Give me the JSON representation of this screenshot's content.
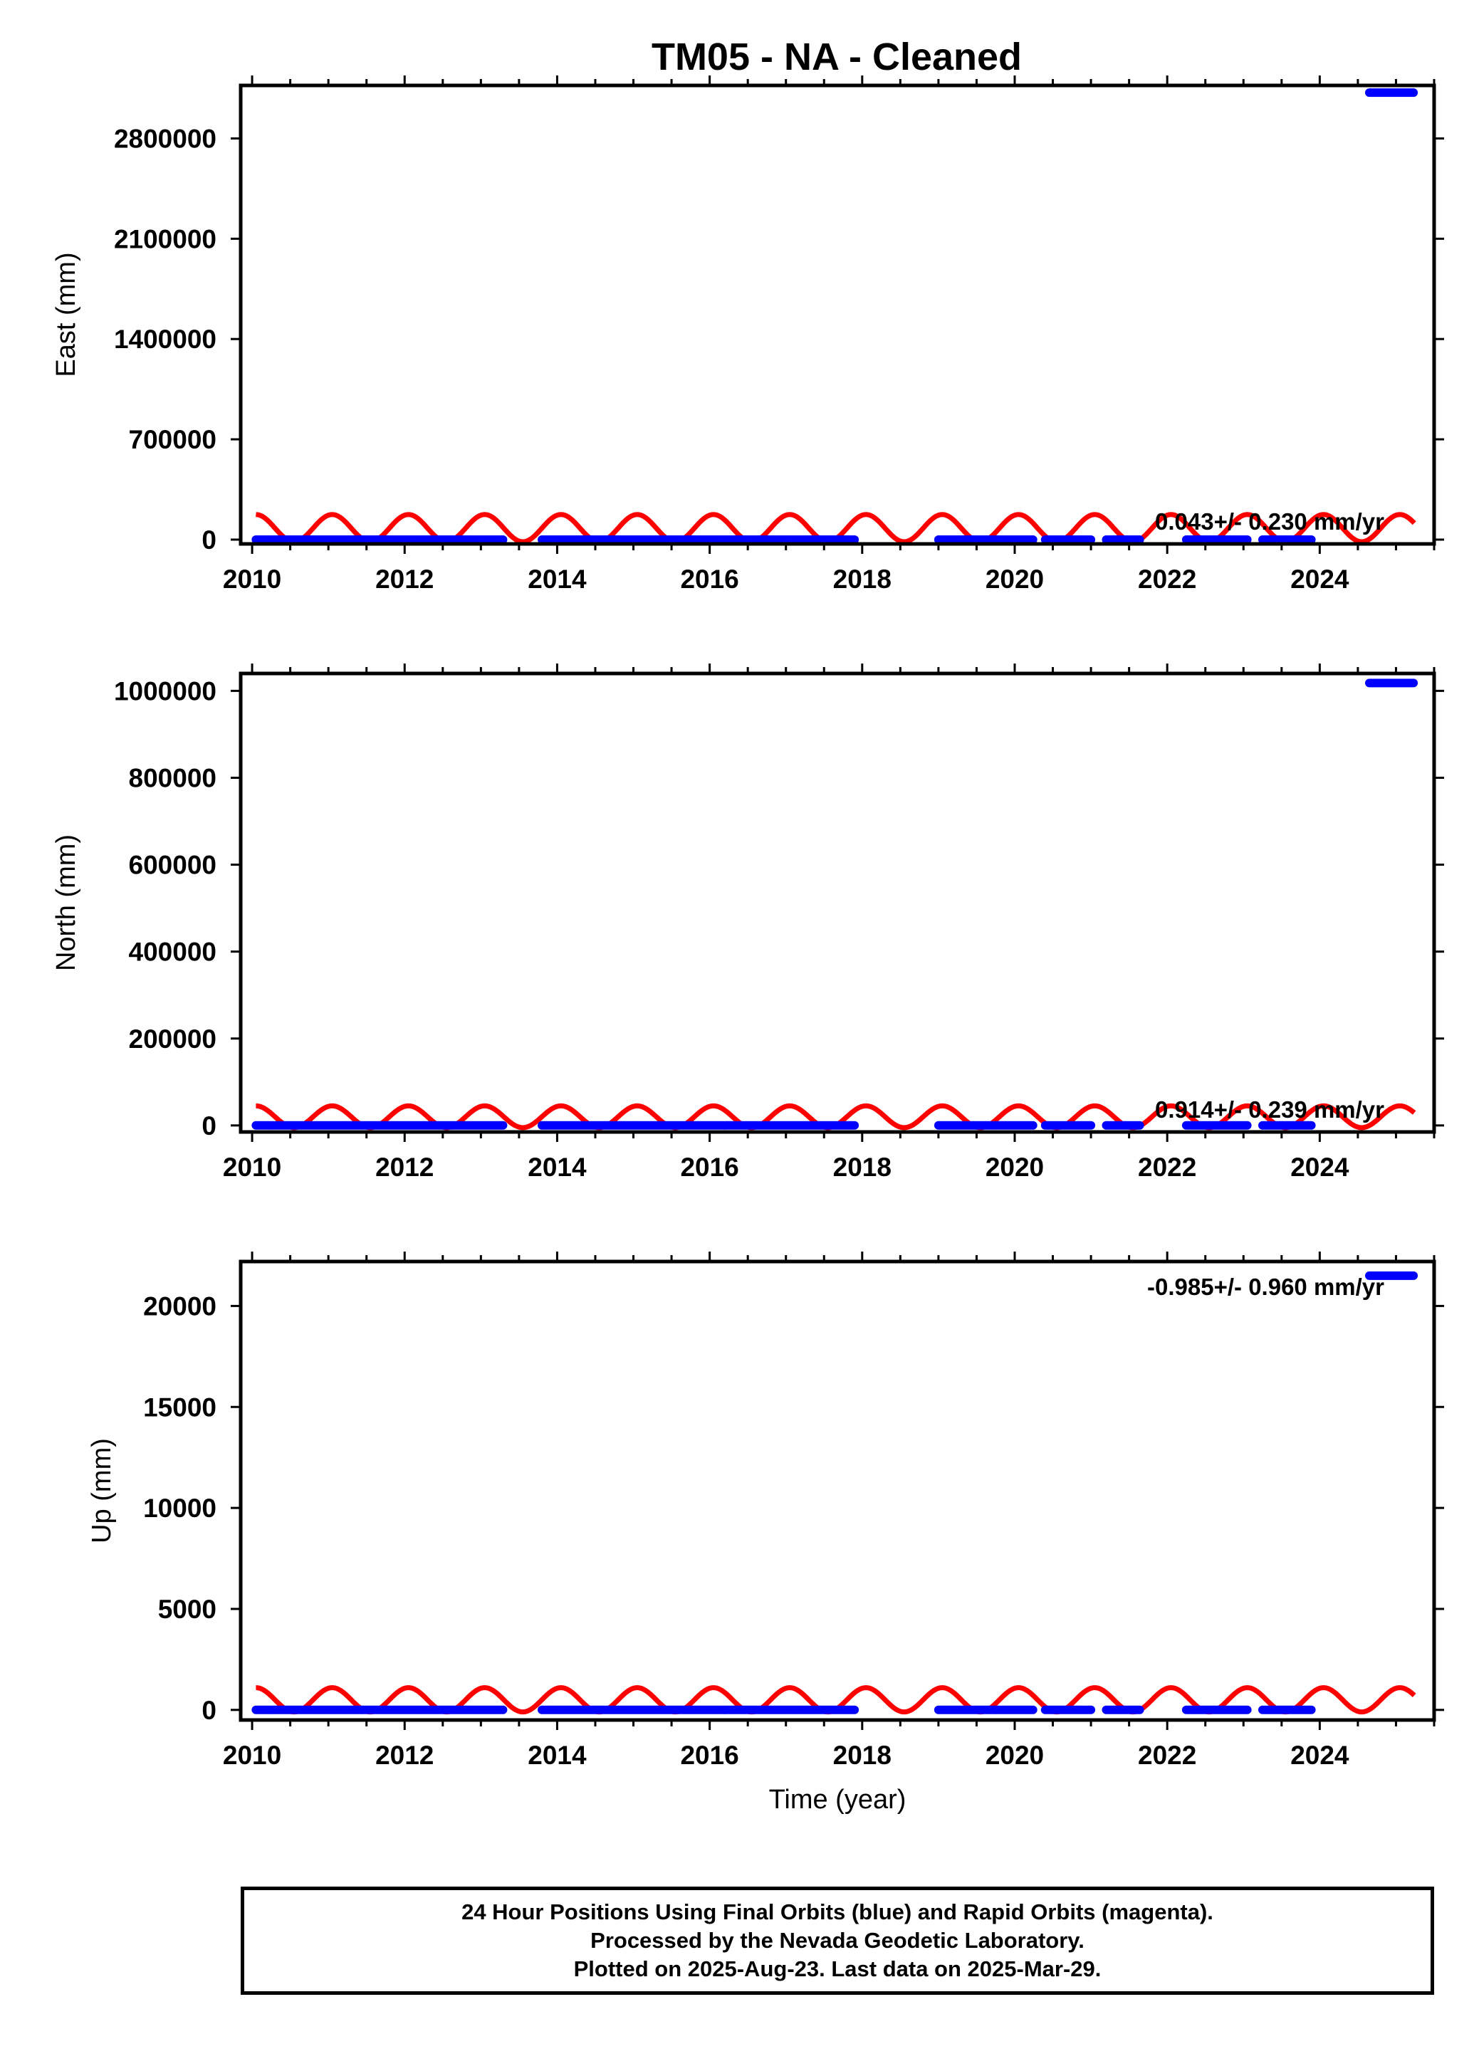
{
  "title": "TM05  - NA - Cleaned",
  "colors": {
    "final_orbits": "#0000ff",
    "model_fit": "#ff0000",
    "frame": "#000000"
  },
  "chart_data": [
    {
      "type": "scatter",
      "panel": "east",
      "ylabel": "East (mm)",
      "xlabel": "",
      "xlim": [
        2009.85,
        2025.5
      ],
      "ylim": [
        -30000,
        3170000
      ],
      "xticks": [
        2010,
        2012,
        2014,
        2016,
        2018,
        2020,
        2022,
        2024
      ],
      "yticks": [
        0,
        700000,
        1400000,
        2100000,
        2800000
      ],
      "x_minor_step": 0.5,
      "rate_label": "0.043+/- 0.230 mm/yr",
      "series": [
        {
          "kind": "points",
          "segments": [
            [
              2010.05,
              2013.3,
              0
            ],
            [
              2013.8,
              2017.9,
              0
            ],
            [
              2019.0,
              2020.25,
              0
            ],
            [
              2020.4,
              2021.0,
              0
            ],
            [
              2021.2,
              2021.65,
              0
            ],
            [
              2022.25,
              2023.05,
              0
            ],
            [
              2023.25,
              2023.9,
              0
            ],
            [
              2024.65,
              2025.24,
              3120000
            ]
          ]
        },
        {
          "kind": "seasonal",
          "offset": 80000,
          "amplitude": 95000,
          "x_start": 2010.05,
          "x_end": 2025.24
        }
      ]
    },
    {
      "type": "scatter",
      "panel": "north",
      "ylabel": "North (mm)",
      "xlabel": "",
      "xlim": [
        2009.85,
        2025.5
      ],
      "ylim": [
        -15000,
        1040000
      ],
      "xticks": [
        2010,
        2012,
        2014,
        2016,
        2018,
        2020,
        2022,
        2024
      ],
      "yticks": [
        0,
        200000,
        400000,
        600000,
        800000,
        1000000
      ],
      "x_minor_step": 0.5,
      "rate_label": "0.914+/- 0.239 mm/yr",
      "series": [
        {
          "kind": "points",
          "segments": [
            [
              2010.05,
              2013.3,
              0
            ],
            [
              2013.8,
              2017.9,
              0
            ],
            [
              2019.0,
              2020.25,
              0
            ],
            [
              2020.4,
              2021.0,
              0
            ],
            [
              2021.2,
              2021.65,
              0
            ],
            [
              2022.25,
              2023.05,
              0
            ],
            [
              2023.25,
              2023.9,
              0
            ],
            [
              2024.65,
              2025.24,
              1018000
            ]
          ]
        },
        {
          "kind": "seasonal",
          "offset": 20000,
          "amplitude": 25000,
          "x_start": 2010.05,
          "x_end": 2025.24
        }
      ]
    },
    {
      "type": "scatter",
      "panel": "up",
      "ylabel": "Up (mm)",
      "xlabel": "Time (year)",
      "xlim": [
        2009.85,
        2025.5
      ],
      "ylim": [
        -500,
        22200
      ],
      "xticks": [
        2010,
        2012,
        2014,
        2016,
        2018,
        2020,
        2022,
        2024
      ],
      "yticks": [
        0,
        5000,
        10000,
        15000,
        20000
      ],
      "x_minor_step": 0.5,
      "rate_label": "-0.985+/- 0.960 mm/yr",
      "series": [
        {
          "kind": "points",
          "segments": [
            [
              2010.05,
              2013.3,
              0
            ],
            [
              2013.8,
              2017.9,
              0
            ],
            [
              2019.0,
              2020.25,
              0
            ],
            [
              2020.4,
              2021.0,
              0
            ],
            [
              2021.2,
              2021.65,
              0
            ],
            [
              2022.25,
              2023.05,
              0
            ],
            [
              2023.25,
              2023.9,
              0
            ],
            [
              2024.65,
              2025.24,
              21500
            ]
          ]
        },
        {
          "kind": "seasonal",
          "offset": 500,
          "amplitude": 600,
          "x_start": 2010.05,
          "x_end": 2025.24
        }
      ]
    }
  ],
  "footer": {
    "line1": "24 Hour Positions Using Final Orbits (blue) and Rapid Orbits (magenta).",
    "line2": "Processed by the Nevada Geodetic Laboratory.",
    "line3": "Plotted on 2025-Aug-23. Last data on 2025-Mar-29."
  }
}
